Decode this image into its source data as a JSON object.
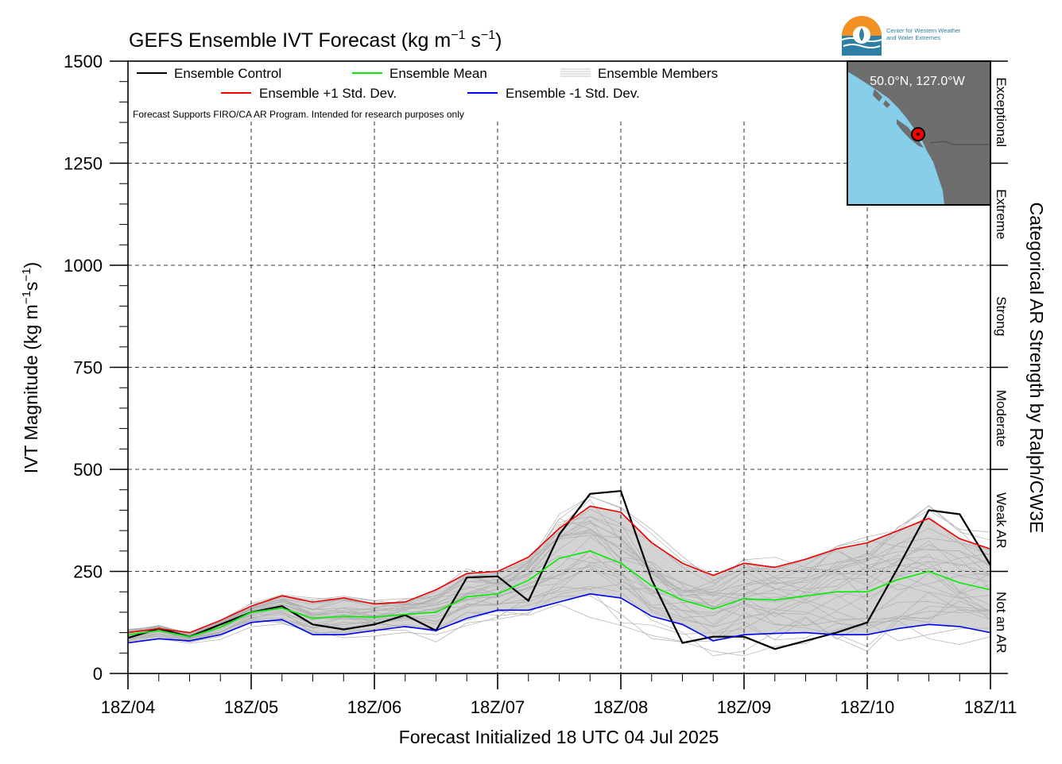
{
  "chart_data": {
    "type": "line",
    "title_main": "GEFS Ensemble IVT Forecast (kg m",
    "title_sup1": "−1",
    "title_mid": " s",
    "title_sup2": "−1",
    "title_end": ")",
    "ylabel_main": "IVT Magnitude (kg m",
    "ylabel_sup1": "−1",
    "ylabel_mid": "s",
    "ylabel_sup2": "−1",
    "ylabel_end": ")",
    "xlabel": "Forecast Initialized 18 UTC 04 Jul 2025",
    "right_label": "Categorical AR Strength by Ralph/CW3E",
    "note": "Forecast Supports FIRO/CA AR Program. Intended for research purposes only",
    "ylim": [
      0,
      1500
    ],
    "xlim": [
      0,
      168
    ],
    "yticks": [
      "0",
      "250",
      "500",
      "750",
      "1000",
      "1250",
      "1500"
    ],
    "ytick_values": [
      0,
      250,
      500,
      750,
      1000,
      1250,
      1500
    ],
    "xticks": [
      "18Z/04",
      "18Z/05",
      "18Z/06",
      "18Z/07",
      "18Z/08",
      "18Z/09",
      "18Z/10",
      "18Z/11"
    ],
    "xtick_hours": [
      0,
      24,
      48,
      72,
      96,
      120,
      144,
      168
    ],
    "grid": true,
    "legend": {
      "placement": "top-left",
      "control": "Ensemble Control",
      "mean": "Ensemble Mean",
      "members": "Ensemble Members",
      "plus_std": "Ensemble +1 Std. Dev.",
      "minus_std": "Ensemble -1 Std. Dev."
    },
    "categories": [
      {
        "label": "Not an AR",
        "from": 0,
        "to": 250
      },
      {
        "label": "Weak AR",
        "from": 250,
        "to": 500
      },
      {
        "label": "Moderate",
        "from": 500,
        "to": 750
      },
      {
        "label": "Strong",
        "from": 750,
        "to": 1000
      },
      {
        "label": "Extreme",
        "from": 1000,
        "to": 1250
      },
      {
        "label": "Exceptional",
        "from": 1250,
        "to": 1500
      }
    ],
    "x": [
      0,
      6,
      12,
      18,
      24,
      30,
      36,
      42,
      48,
      54,
      60,
      66,
      72,
      78,
      84,
      90,
      96,
      102,
      108,
      114,
      120,
      126,
      132,
      138,
      144,
      150,
      156,
      162,
      168
    ],
    "series": [
      {
        "name": "Ensemble Control",
        "color": "#000000",
        "values": [
          87,
          110,
          90,
          120,
          150,
          165,
          120,
          108,
          120,
          143,
          105,
          235,
          238,
          178,
          340,
          440,
          447,
          230,
          75,
          90,
          90,
          60,
          80,
          100,
          125,
          260,
          400,
          390,
          265
        ]
      },
      {
        "name": "Ensemble Mean",
        "color": "#00ee00",
        "values": [
          95,
          105,
          90,
          113,
          150,
          160,
          135,
          140,
          138,
          145,
          150,
          188,
          195,
          228,
          282,
          300,
          270,
          215,
          180,
          158,
          183,
          180,
          190,
          200,
          200,
          230,
          250,
          222,
          205
        ]
      },
      {
        "name": "Ensemble +1 Std. Dev.",
        "color": "#ee0000",
        "values": [
          100,
          110,
          100,
          130,
          165,
          190,
          175,
          185,
          170,
          175,
          205,
          245,
          250,
          285,
          355,
          410,
          395,
          320,
          270,
          240,
          270,
          260,
          280,
          305,
          320,
          350,
          380,
          330,
          305
        ]
      },
      {
        "name": "Ensemble -1 Std. Dev.",
        "color": "#0000ee",
        "values": [
          75,
          85,
          80,
          95,
          125,
          132,
          95,
          95,
          105,
          115,
          105,
          135,
          155,
          155,
          175,
          195,
          185,
          140,
          120,
          80,
          95,
          98,
          100,
          95,
          95,
          110,
          120,
          115,
          100
        ]
      }
    ],
    "location": "50.0°N, 127.0°W",
    "colors": {
      "control": "#000000",
      "mean": "#00ee00",
      "plus": "#ee0000",
      "minus": "#0000ee",
      "members": "#b0b0b0",
      "band": "#d3d3d3",
      "ocean": "#87ceeb",
      "land": "#6e6e6e",
      "logo_orange": "#f39224",
      "logo_blue": "#2d7fa3"
    }
  },
  "logo": {
    "line1": "Center for Western Weather",
    "line2": "and Water Extremes"
  }
}
